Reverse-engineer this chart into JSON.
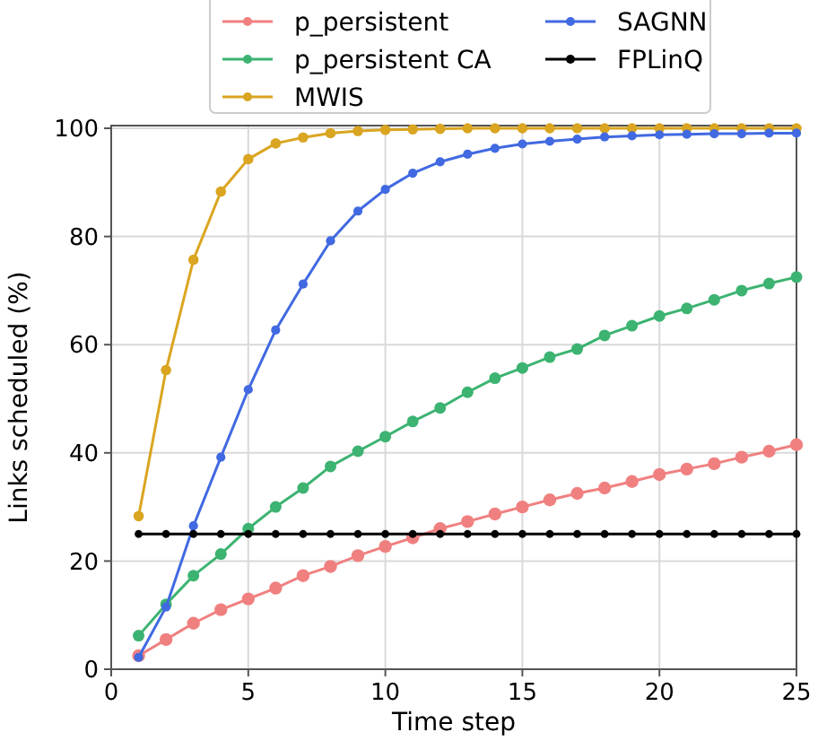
{
  "chart_data": {
    "type": "line",
    "xlabel": "Time step",
    "ylabel": "Links scheduled (%)",
    "x": [
      1,
      2,
      3,
      4,
      5,
      6,
      7,
      8,
      9,
      10,
      11,
      12,
      13,
      14,
      15,
      16,
      17,
      18,
      19,
      20,
      21,
      22,
      23,
      24,
      25
    ],
    "series": [
      {
        "name": "p_persistent",
        "color": "#f08080",
        "values": [
          2.5,
          5.5,
          8.5,
          11,
          13,
          15,
          17.3,
          19,
          21,
          22.7,
          24.3,
          26,
          27.3,
          28.7,
          30,
          31.3,
          32.5,
          33.5,
          34.7,
          36,
          37,
          38,
          39.2,
          40.3,
          41.5
        ]
      },
      {
        "name": "p_persistent CA",
        "color": "#3cb371",
        "values": [
          6.2,
          12,
          17.3,
          21.3,
          26,
          30,
          33.5,
          37.5,
          40.3,
          43,
          45.8,
          48.3,
          51.2,
          53.8,
          55.7,
          57.7,
          59.2,
          61.7,
          63.5,
          65.3,
          66.7,
          68.3,
          70,
          71.3,
          72.5
        ]
      },
      {
        "name": "MWIS",
        "color": "#daa520",
        "values": [
          28.3,
          55.3,
          75.7,
          88.3,
          94.3,
          97.2,
          98.3,
          99.1,
          99.5,
          99.7,
          99.8,
          99.9,
          100,
          100,
          100,
          100,
          100,
          100,
          100,
          100,
          100,
          100,
          100,
          100,
          100
        ]
      },
      {
        "name": "SAGNN",
        "color": "#4169e1",
        "values": [
          2.2,
          11.5,
          26.5,
          39.2,
          51.7,
          62.7,
          71.2,
          79.2,
          84.7,
          88.7,
          91.7,
          93.8,
          95.2,
          96.3,
          97.1,
          97.6,
          98,
          98.4,
          98.6,
          98.8,
          98.9,
          99,
          99,
          99.1,
          99.1
        ]
      },
      {
        "name": "FPLinQ",
        "color": "#000000",
        "values": [
          25,
          25,
          25,
          25,
          25,
          25,
          25,
          25,
          25,
          25,
          25,
          25,
          25,
          25,
          25,
          25,
          25,
          25,
          25,
          25,
          25,
          25,
          25,
          25,
          25
        ]
      }
    ],
    "xlim": [
      0,
      25
    ],
    "xticks": [
      0,
      5,
      10,
      15,
      20,
      25
    ],
    "ylim": [
      0,
      100.5
    ],
    "yticks": [
      0,
      20,
      40,
      60,
      80,
      100
    ],
    "grid": true,
    "legend": "top",
    "marker": "circle",
    "line_style": "solid"
  }
}
